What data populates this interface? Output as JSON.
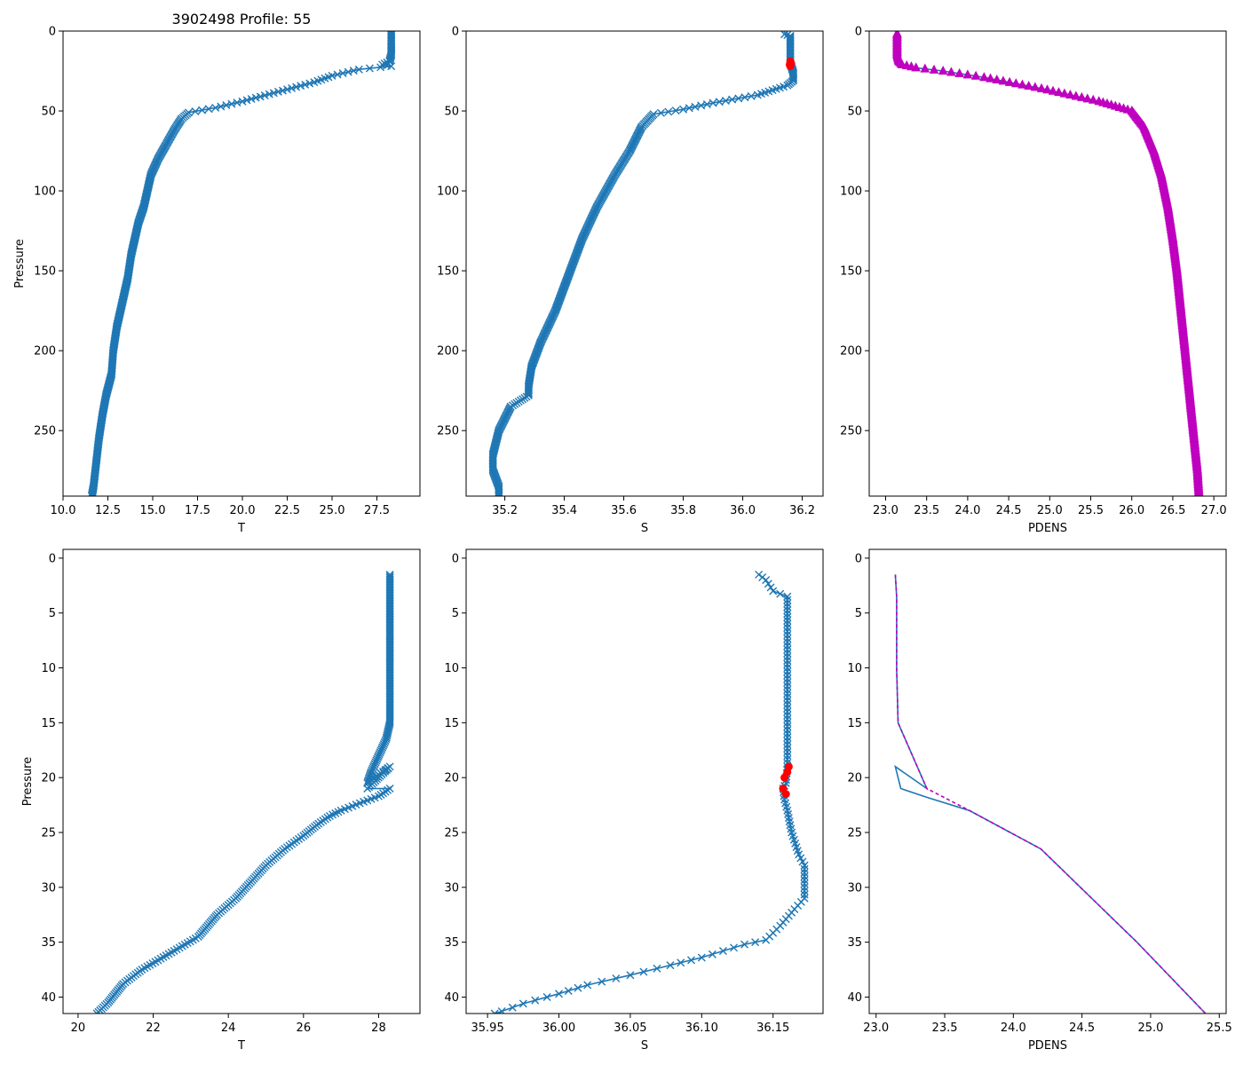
{
  "figure": {
    "title": "3902498 Profile: 55"
  },
  "colors": {
    "line": "#1f77b4",
    "flag": "#ff0000",
    "density": "#bf00bf",
    "axes": "#000000"
  },
  "chart_data": [
    {
      "id": "top-temperature",
      "type": "line",
      "xlabel": "T",
      "ylabel": "Pressure",
      "xlim": [
        10.0,
        29.9
      ],
      "ylim": [
        291,
        0
      ],
      "xticks": [
        10.0,
        12.5,
        15.0,
        17.5,
        20.0,
        22.5,
        25.0,
        27.5
      ],
      "xtick_labels": [
        "10.0",
        "12.5",
        "15.0",
        "17.5",
        "20.0",
        "22.5",
        "25.0",
        "27.5"
      ],
      "yticks": [
        0,
        50,
        100,
        150,
        200,
        250
      ],
      "ytick_labels": [
        "0",
        "50",
        "100",
        "150",
        "200",
        "250"
      ],
      "marker": "x",
      "marker_step": 0.8,
      "series": [
        {
          "name": "T",
          "x": [
            28.3,
            28.3,
            28.3,
            28.2,
            27.8,
            28.3,
            26.5,
            25.0,
            24.0,
            22.0,
            20.0,
            18.5,
            17.0,
            16.6,
            16.2,
            15.8,
            15.3,
            14.9,
            14.7,
            14.5,
            14.2,
            14.0,
            13.8,
            13.6,
            13.3,
            13.0,
            12.8,
            12.7,
            12.4,
            12.2,
            12.0,
            11.9,
            11.8,
            11.7,
            11.6
          ],
          "y": [
            0,
            10,
            15,
            19,
            21,
            22,
            24,
            28,
            32,
            38,
            44,
            48,
            51,
            55,
            62,
            70,
            80,
            90,
            100,
            110,
            120,
            130,
            140,
            155,
            170,
            185,
            200,
            215,
            228,
            240,
            255,
            265,
            275,
            285,
            291
          ]
        }
      ],
      "flagged": null
    },
    {
      "id": "top-salinity",
      "type": "line",
      "xlabel": "S",
      "ylabel": "",
      "xlim": [
        35.07,
        36.27
      ],
      "ylim": [
        291,
        0
      ],
      "xticks": [
        35.2,
        35.4,
        35.6,
        35.8,
        36.0,
        36.2
      ],
      "xtick_labels": [
        "35.2",
        "35.4",
        "35.6",
        "35.8",
        "36.0",
        "36.2"
      ],
      "yticks": [
        0,
        50,
        100,
        150,
        200,
        250
      ],
      "ytick_labels": [
        "0",
        "50",
        "100",
        "150",
        "200",
        "250"
      ],
      "marker": "x",
      "marker_step": 0.8,
      "series": [
        {
          "name": "S",
          "x": [
            36.14,
            36.16,
            36.16,
            36.16,
            36.17,
            36.17,
            36.15,
            36.05,
            35.9,
            35.8,
            35.7,
            35.66,
            35.62,
            35.57,
            35.51,
            35.46,
            35.42,
            35.37,
            35.32,
            35.29,
            35.28,
            35.28,
            35.22,
            35.18,
            35.16,
            35.16,
            35.18,
            35.18
          ],
          "y": [
            2,
            3,
            10,
            20,
            26,
            31,
            34,
            40,
            45,
            49,
            52,
            60,
            75,
            90,
            110,
            130,
            150,
            175,
            195,
            210,
            222,
            228,
            235,
            250,
            265,
            275,
            285,
            291
          ]
        }
      ],
      "flagged": {
        "x": [
          36.16,
          36.162,
          36.158,
          36.16
        ],
        "y": [
          19,
          20,
          21,
          22
        ]
      }
    },
    {
      "id": "top-density",
      "type": "line",
      "xlabel": "PDENS",
      "ylabel": "",
      "xlim": [
        22.8,
        27.15
      ],
      "ylim": [
        291,
        0
      ],
      "xticks": [
        23.0,
        23.5,
        24.0,
        24.5,
        25.0,
        25.5,
        26.0,
        26.5,
        27.0
      ],
      "xtick_labels": [
        "23.0",
        "23.5",
        "24.0",
        "24.5",
        "25.0",
        "25.5",
        "26.0",
        "26.5",
        "27.0"
      ],
      "yticks": [
        0,
        50,
        100,
        150,
        200,
        250
      ],
      "ytick_labels": [
        "0",
        "50",
        "100",
        "150",
        "200",
        "250"
      ],
      "marker": "^",
      "marker_step": 0.8,
      "series": [
        {
          "name": "PDENS",
          "x": [
            23.14,
            23.14,
            23.16,
            23.2,
            23.37,
            23.7,
            24.2,
            24.9,
            25.6,
            26.0,
            26.15,
            26.27,
            26.36,
            26.44,
            26.5,
            26.55,
            26.6,
            26.65,
            26.7,
            26.75,
            26.8,
            26.82
          ],
          "y": [
            1.5,
            15,
            19,
            21,
            23,
            25,
            29,
            36,
            44,
            50,
            60,
            75,
            90,
            110,
            130,
            150,
            175,
            200,
            225,
            250,
            275,
            291
          ]
        }
      ],
      "flagged": null
    },
    {
      "id": "bottom-temperature",
      "type": "line",
      "xlabel": "T",
      "ylabel": "Pressure",
      "xlim": [
        19.6,
        29.1
      ],
      "ylim": [
        41.5,
        -0.8
      ],
      "xticks": [
        20,
        22,
        24,
        26,
        28
      ],
      "xtick_labels": [
        "20",
        "22",
        "24",
        "26",
        "28"
      ],
      "yticks": [
        0,
        5,
        10,
        15,
        20,
        25,
        30,
        35,
        40
      ],
      "ytick_labels": [
        "0",
        "5",
        "10",
        "15",
        "20",
        "25",
        "30",
        "35",
        "40"
      ],
      "marker": "x",
      "marker_step": 0.15,
      "series": [
        {
          "name": "T",
          "x": [
            28.3,
            28.3,
            28.3,
            28.3,
            28.3,
            28.3,
            28.2,
            28.0,
            27.8,
            27.7,
            28.3,
            27.7,
            28.3,
            28.0,
            27.6,
            27.0,
            26.7,
            26.4,
            26.0,
            25.5,
            25.0,
            24.6,
            24.2,
            23.7,
            23.2,
            22.7,
            22.2,
            21.7,
            21.2,
            20.8,
            20.5
          ],
          "y": [
            1.5,
            5,
            9.5,
            12,
            14,
            15,
            16.5,
            18,
            19.5,
            20.5,
            19,
            21,
            21,
            21.7,
            22.2,
            23,
            23.5,
            24.2,
            25.3,
            26.5,
            28,
            29.5,
            31,
            32.5,
            34.5,
            35.5,
            36.5,
            37.5,
            38.8,
            40.5,
            41.5
          ]
        }
      ],
      "flagged": null
    },
    {
      "id": "bottom-salinity",
      "type": "line",
      "xlabel": "S",
      "ylabel": "",
      "xlim": [
        35.935,
        36.185
      ],
      "ylim": [
        41.5,
        -0.8
      ],
      "xticks": [
        35.95,
        36.0,
        36.05,
        36.1,
        36.15
      ],
      "xtick_labels": [
        "35.95",
        "36.00",
        "36.05",
        "36.10",
        "36.15"
      ],
      "yticks": [
        0,
        5,
        10,
        15,
        20,
        25,
        30,
        35,
        40
      ],
      "ytick_labels": [
        "0",
        "5",
        "10",
        "15",
        "20",
        "25",
        "30",
        "35",
        "40"
      ],
      "marker": "x",
      "marker_step": 0.35,
      "series": [
        {
          "name": "S",
          "x": [
            36.14,
            36.145,
            36.15,
            36.16,
            36.16,
            36.16,
            36.16,
            36.16,
            36.16,
            36.159,
            36.157,
            36.158,
            36.16,
            36.163,
            36.168,
            36.172,
            36.172,
            36.172,
            36.165,
            36.155,
            36.145,
            36.13,
            36.1,
            36.078,
            36.05,
            36.02,
            36.0,
            35.975,
            35.96,
            35.955
          ],
          "y": [
            1.5,
            2,
            3,
            3.5,
            6,
            10,
            14,
            17,
            19,
            20.5,
            21,
            22,
            23,
            25,
            27,
            28,
            29,
            31,
            32,
            33.5,
            34.8,
            35.2,
            36.4,
            37.1,
            38,
            38.9,
            39.7,
            40.6,
            41.3,
            41.5
          ]
        }
      ],
      "flagged": {
        "x": [
          36.161,
          36.16,
          36.158,
          36.157,
          36.159
        ],
        "y": [
          19,
          19.5,
          20,
          21,
          21.5
        ]
      }
    },
    {
      "id": "bottom-density",
      "type": "line",
      "xlabel": "PDENS",
      "ylabel": "",
      "xlim": [
        22.95,
        25.55
      ],
      "ylim": [
        41.5,
        -0.8
      ],
      "xticks": [
        23.0,
        23.5,
        24.0,
        24.5,
        25.0,
        25.5
      ],
      "xtick_labels": [
        "23.0",
        "23.5",
        "24.0",
        "24.5",
        "25.0",
        "25.5"
      ],
      "yticks": [
        0,
        5,
        10,
        15,
        20,
        25,
        30,
        35,
        40
      ],
      "ytick_labels": [
        "0",
        "5",
        "10",
        "15",
        "20",
        "25",
        "30",
        "35",
        "40"
      ],
      "marker": null,
      "marker_step": 0,
      "series": [
        {
          "name": "PDENS",
          "x": [
            23.14,
            23.15,
            23.15,
            23.16,
            23.37,
            23.14,
            23.18,
            23.37,
            23.68,
            24.2,
            24.9,
            25.4
          ],
          "y": [
            1.5,
            3.5,
            10,
            15,
            21,
            19,
            21,
            21.8,
            23,
            26.5,
            35,
            41.5
          ]
        },
        {
          "name": "PDENS-dashed",
          "x": [
            23.14,
            23.15,
            23.15,
            23.16,
            23.37,
            23.68,
            24.2,
            24.9,
            25.4
          ],
          "y": [
            1.5,
            3.5,
            10,
            15,
            21,
            23,
            26.5,
            35,
            41.5
          ]
        }
      ],
      "flagged": null
    }
  ]
}
